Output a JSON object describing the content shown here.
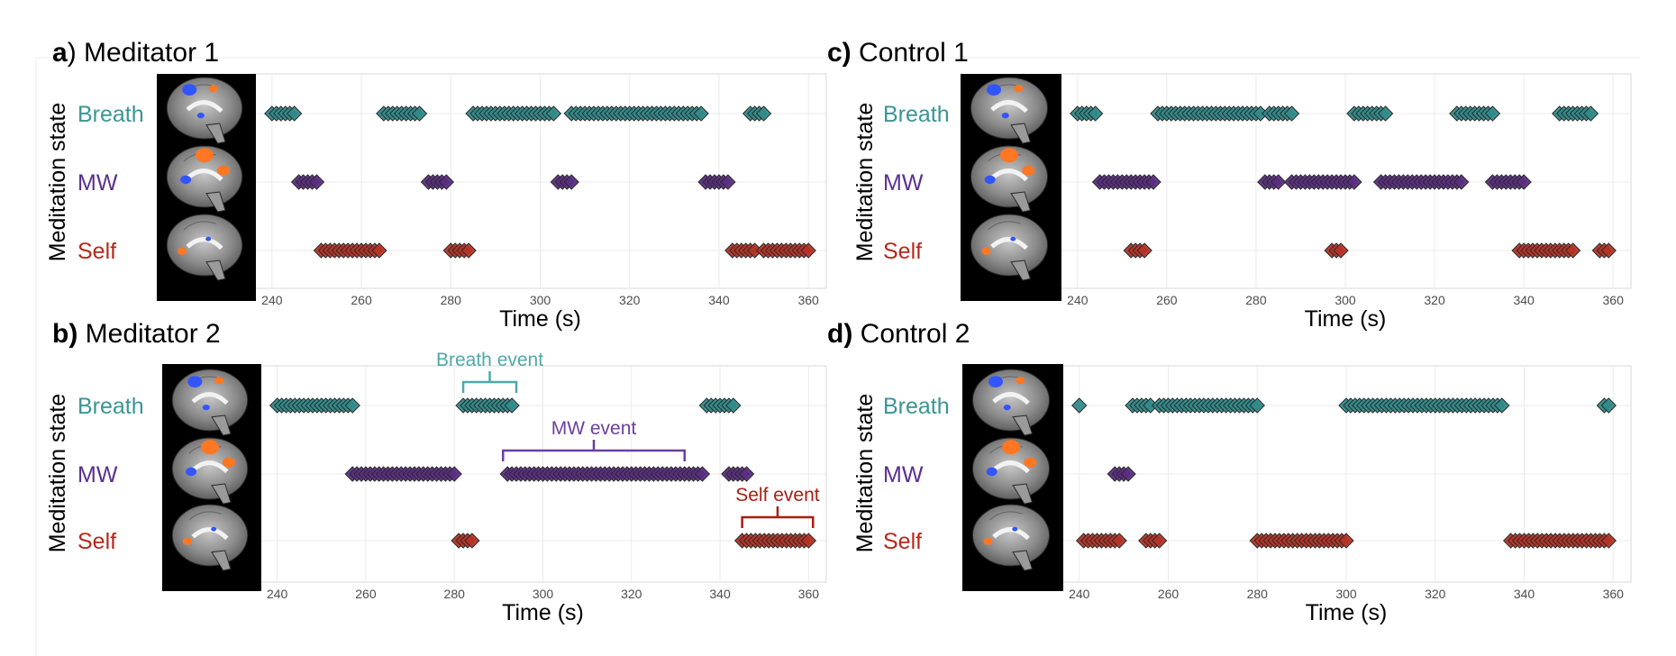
{
  "colors": {
    "Breath": "#2f8b8a",
    "MW": "#5a2d82",
    "Self": "#b43326",
    "breath_label": "#3a9596",
    "mw_label": "#5b2f8f",
    "self_label": "#b5291c",
    "breath_annot": "#4fa9aa",
    "mw_annot": "#6b3fa0",
    "self_annot": "#aa1d12"
  },
  "chart_data": [
    {
      "panel": "a",
      "title_prefix": "a",
      "title": ") Meditator 1",
      "type": "scatter",
      "xlabel": "Time (s)",
      "ylabel": "Meditation state",
      "categories": [
        "Breath",
        "MW",
        "Self"
      ],
      "xlim": [
        236,
        364
      ],
      "xticks": [
        240,
        260,
        280,
        300,
        320,
        340,
        360
      ],
      "grid": true,
      "series": [
        {
          "name": "Breath",
          "intervals": [
            [
              240,
              245
            ],
            [
              265,
              273
            ],
            [
              285,
              303
            ],
            [
              307,
              336
            ],
            [
              347,
              350
            ]
          ]
        },
        {
          "name": "MW",
          "intervals": [
            [
              246,
              250
            ],
            [
              275,
              279
            ],
            [
              304,
              307
            ],
            [
              337,
              342
            ]
          ]
        },
        {
          "name": "Self",
          "intervals": [
            [
              251,
              264
            ],
            [
              280,
              284
            ],
            [
              343,
              348
            ],
            [
              350,
              360
            ]
          ]
        }
      ]
    },
    {
      "panel": "b",
      "title_prefix": "b)",
      "title": " Meditator 2",
      "type": "scatter",
      "xlabel": "Time (s)",
      "ylabel": "Meditation state",
      "categories": [
        "Breath",
        "MW",
        "Self"
      ],
      "xlim": [
        236,
        364
      ],
      "xticks": [
        240,
        260,
        280,
        300,
        320,
        340,
        360
      ],
      "grid": true,
      "series": [
        {
          "name": "Breath",
          "intervals": [
            [
              240,
              257
            ],
            [
              282,
              293
            ],
            [
              337,
              343
            ]
          ]
        },
        {
          "name": "MW",
          "intervals": [
            [
              257,
              280
            ],
            [
              292,
              336
            ],
            [
              342,
              346
            ]
          ]
        },
        {
          "name": "Self",
          "intervals": [
            [
              281,
              284
            ],
            [
              345,
              360
            ]
          ]
        }
      ],
      "annotations": [
        {
          "text": "Breath event",
          "x_from": 282,
          "x_to": 294,
          "row": "Breath",
          "color_key": "breath_annot"
        },
        {
          "text": "MW event",
          "x_from": 291,
          "x_to": 332,
          "row": "MW",
          "color_key": "mw_annot"
        },
        {
          "text": "Self event",
          "x_from": 345,
          "x_to": 361,
          "row": "Self",
          "color_key": "self_annot"
        }
      ]
    },
    {
      "panel": "c",
      "title_prefix": "c)",
      "title": " Control 1",
      "type": "scatter",
      "xlabel": "Time (s)",
      "ylabel": "Meditation state",
      "categories": [
        "Breath",
        "MW",
        "Self"
      ],
      "xlim": [
        236,
        364
      ],
      "xticks": [
        240,
        260,
        280,
        300,
        320,
        340,
        360
      ],
      "grid": true,
      "series": [
        {
          "name": "Breath",
          "intervals": [
            [
              240,
              244
            ],
            [
              258,
              281
            ],
            [
              283,
              288
            ],
            [
              302,
              309
            ],
            [
              325,
              333
            ],
            [
              348,
              355
            ]
          ]
        },
        {
          "name": "MW",
          "intervals": [
            [
              245,
              257
            ],
            [
              282,
              285
            ],
            [
              288,
              302
            ],
            [
              308,
              326
            ],
            [
              333,
              340
            ]
          ]
        },
        {
          "name": "Self",
          "intervals": [
            [
              252,
              255
            ],
            [
              297,
              299
            ],
            [
              339,
              351
            ],
            [
              357,
              359
            ]
          ]
        }
      ]
    },
    {
      "panel": "d",
      "title_prefix": "d)",
      "title": " Control 2",
      "type": "scatter",
      "xlabel": "Time (s)",
      "ylabel": "Meditation state",
      "categories": [
        "Breath",
        "MW",
        "Self"
      ],
      "xlim": [
        236,
        364
      ],
      "xticks": [
        240,
        260,
        280,
        300,
        320,
        340,
        360
      ],
      "grid": true,
      "series": [
        {
          "name": "Breath",
          "intervals": [
            [
              240,
              240
            ],
            [
              252,
              256
            ],
            [
              258,
              280
            ],
            [
              300,
              335
            ],
            [
              358,
              359
            ]
          ]
        },
        {
          "name": "MW",
          "intervals": [
            [
              248,
              251
            ]
          ]
        },
        {
          "name": "Self",
          "intervals": [
            [
              241,
              249
            ],
            [
              255,
              258
            ],
            [
              280,
              300
            ],
            [
              337,
              359
            ]
          ]
        }
      ]
    }
  ]
}
